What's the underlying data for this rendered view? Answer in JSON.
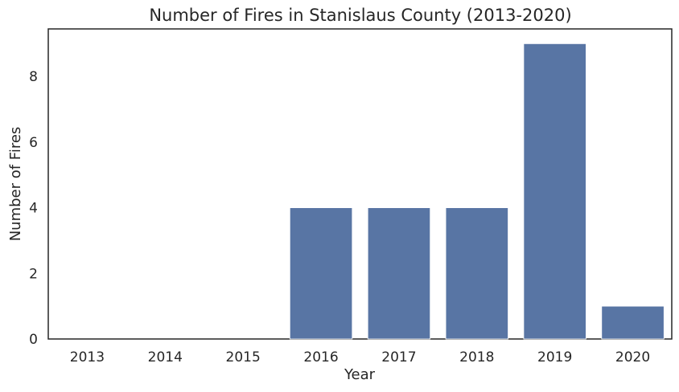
{
  "chart_data": {
    "type": "bar",
    "title": "Number of Fires in Stanislaus County (2013-2020)",
    "xlabel": "Year",
    "ylabel": "Number of Fires",
    "categories": [
      "2013",
      "2014",
      "2015",
      "2016",
      "2017",
      "2018",
      "2019",
      "2020"
    ],
    "values": [
      0,
      0,
      0,
      4,
      4,
      4,
      9,
      1
    ],
    "ylim": [
      0,
      9.45
    ],
    "yticks": [
      0,
      2,
      4,
      6,
      8
    ],
    "grid": false,
    "bar_color": "#5875a4"
  }
}
